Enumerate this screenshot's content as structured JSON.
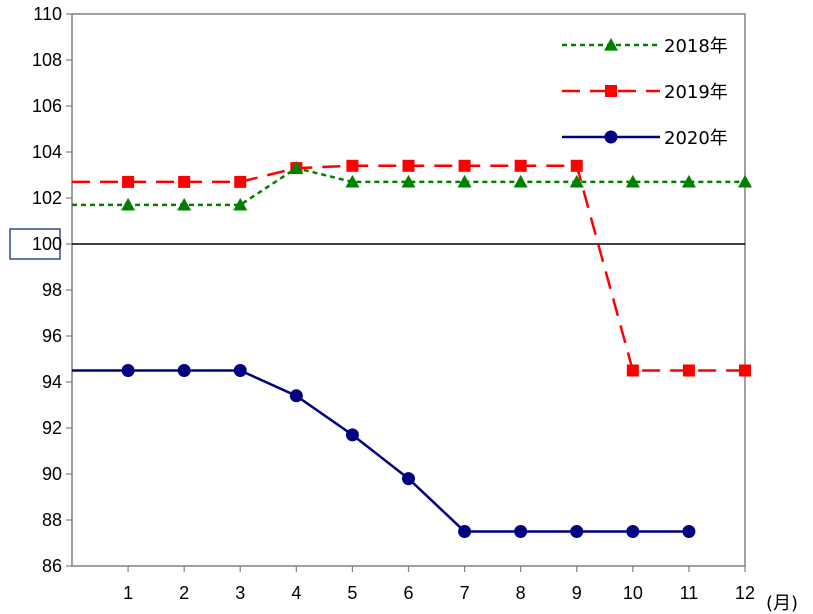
{
  "chart_data": {
    "type": "line",
    "title": "",
    "xlabel": "(月)",
    "ylabel": "",
    "x": [
      0,
      1,
      2,
      3,
      4,
      5,
      6,
      7,
      8,
      9,
      10,
      11,
      12
    ],
    "x_tick_labels": [
      "1",
      "2",
      "3",
      "4",
      "5",
      "6",
      "7",
      "8",
      "9",
      "10",
      "11",
      "12"
    ],
    "x_tick_values": [
      1,
      2,
      3,
      4,
      5,
      6,
      7,
      8,
      9,
      10,
      11,
      12
    ],
    "xlim": [
      0,
      12
    ],
    "ylim": [
      86,
      110
    ],
    "y_ticks": [
      86,
      88,
      90,
      92,
      94,
      96,
      98,
      100,
      102,
      104,
      106,
      108,
      110
    ],
    "baseline": 100,
    "baseline_highlighted_label": "100",
    "grid": false,
    "legend_position": "top-right",
    "series": [
      {
        "name": "2018年",
        "color": "#008000",
        "line_style": "dotted",
        "marker": "triangle",
        "values": [
          101.7,
          101.7,
          101.7,
          101.7,
          103.3,
          102.7,
          102.7,
          102.7,
          102.7,
          102.7,
          102.7,
          102.7,
          102.7
        ]
      },
      {
        "name": "2019年",
        "color": "#ff0000",
        "line_style": "dashed",
        "marker": "square",
        "values": [
          102.7,
          102.7,
          102.7,
          102.7,
          103.3,
          103.4,
          103.4,
          103.4,
          103.4,
          103.4,
          94.5,
          94.5,
          94.5
        ]
      },
      {
        "name": "2020年",
        "color": "#000080",
        "line_style": "solid",
        "marker": "circle",
        "values": [
          94.5,
          94.5,
          94.5,
          94.5,
          93.4,
          91.7,
          89.8,
          87.5,
          87.5,
          87.5,
          87.5,
          87.5,
          null
        ]
      }
    ]
  }
}
